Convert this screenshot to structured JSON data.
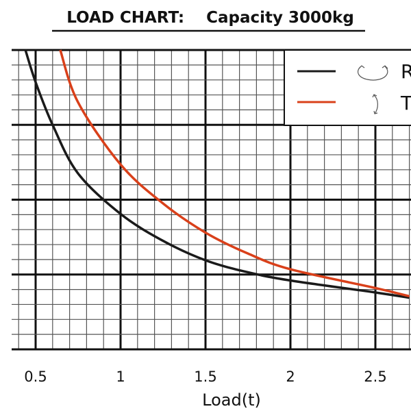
{
  "chart_data": {
    "type": "line",
    "title": "LOAD CHART:    Capacity 3000kg",
    "xlabel": "Load(t)",
    "ylabel": "",
    "xlim": [
      0.37,
      2.7
    ],
    "ylim": [
      0,
      4
    ],
    "x_ticks": [
      "0.5",
      "1",
      "1.5",
      "2",
      "2.5"
    ],
    "x_tick_values": [
      0.5,
      1,
      1.5,
      2,
      2.5
    ],
    "grid": true,
    "legend_position": "top-right",
    "series": [
      {
        "name": "R",
        "color": "#1a1a1a",
        "icon": "rotation-arrows-icon",
        "points": [
          [
            0.44,
            4.0
          ],
          [
            0.5,
            3.57
          ],
          [
            0.6,
            3.0
          ],
          [
            0.75,
            2.35
          ],
          [
            1.0,
            1.81
          ],
          [
            1.25,
            1.45
          ],
          [
            1.5,
            1.19
          ],
          [
            1.75,
            1.03
          ],
          [
            2.0,
            0.92
          ],
          [
            2.5,
            0.76
          ],
          [
            2.7,
            0.69
          ]
        ]
      },
      {
        "name": "T",
        "color": "#d9401a",
        "icon": "tilt-arrow-icon",
        "points": [
          [
            0.645,
            4.0
          ],
          [
            0.75,
            3.3
          ],
          [
            1.0,
            2.47
          ],
          [
            1.25,
            1.95
          ],
          [
            1.5,
            1.56
          ],
          [
            1.75,
            1.28
          ],
          [
            2.0,
            1.07
          ],
          [
            2.5,
            0.82
          ],
          [
            2.7,
            0.71
          ]
        ]
      }
    ]
  }
}
